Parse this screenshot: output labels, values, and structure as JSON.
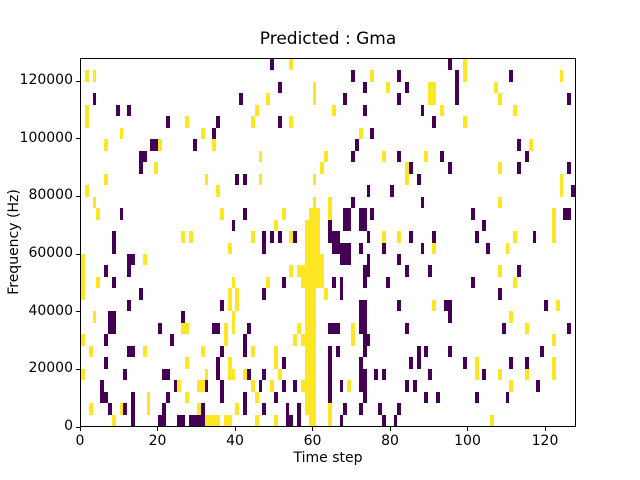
{
  "chart_data": {
    "type": "heatmap",
    "title": "Predicted : Gma",
    "xlabel": "Time step",
    "ylabel": "Frequency (Hz)",
    "x_range": [
      0,
      128
    ],
    "y_range": [
      0,
      128000
    ],
    "grid_cols": 128,
    "grid_rows": 32,
    "freq_bin_hz": 4000,
    "row_origin": "top",
    "xticks": [
      0,
      20,
      40,
      60,
      80,
      100,
      120
    ],
    "yticks": [
      0,
      20000,
      40000,
      60000,
      80000,
      100000,
      120000
    ],
    "legend": "none",
    "grid": "off",
    "colors": {
      "background_value": "#21918c",
      "high": "#fde725",
      "low": "#440154",
      "axes_text": "#000000",
      "figure_background": "#ffffff"
    },
    "yellow_cells": [
      [
        1,
        1
      ],
      [
        3,
        1
      ],
      [
        1,
        4
      ],
      [
        1,
        5
      ],
      [
        27,
        5
      ],
      [
        10,
        6
      ],
      [
        31,
        6
      ],
      [
        6,
        7
      ],
      [
        20,
        7
      ],
      [
        19,
        9
      ],
      [
        6,
        10
      ],
      [
        1,
        11
      ],
      [
        3,
        12
      ],
      [
        4,
        13
      ],
      [
        26,
        15
      ],
      [
        28,
        15
      ],
      [
        0,
        17
      ],
      [
        0,
        18
      ],
      [
        16,
        17
      ],
      [
        0,
        19
      ],
      [
        4,
        19
      ],
      [
        0,
        20
      ],
      [
        3,
        22
      ],
      [
        26,
        23
      ],
      [
        27,
        23
      ],
      [
        0,
        24
      ],
      [
        2,
        25
      ],
      [
        16,
        25
      ],
      [
        31,
        25
      ],
      [
        27,
        26
      ],
      [
        0,
        27
      ],
      [
        25,
        28
      ],
      [
        30,
        28
      ],
      [
        31,
        28
      ],
      [
        17,
        29
      ],
      [
        27,
        29
      ],
      [
        2,
        30
      ],
      [
        10,
        30
      ],
      [
        17,
        30
      ],
      [
        30,
        30
      ],
      [
        8,
        31
      ],
      [
        32,
        31
      ],
      [
        33,
        31
      ],
      [
        34,
        31
      ],
      [
        35,
        31
      ],
      [
        37,
        31
      ],
      [
        38,
        31
      ],
      [
        54,
        0
      ],
      [
        48,
        3
      ],
      [
        60,
        2
      ],
      [
        60,
        3
      ],
      [
        45,
        4
      ],
      [
        44,
        5
      ],
      [
        54,
        5
      ],
      [
        34,
        7
      ],
      [
        46,
        8
      ],
      [
        63,
        8
      ],
      [
        62,
        9
      ],
      [
        32,
        10
      ],
      [
        46,
        10
      ],
      [
        60,
        10
      ],
      [
        35,
        11
      ],
      [
        60,
        12
      ],
      [
        36,
        13
      ],
      [
        52,
        13
      ],
      [
        50,
        14
      ],
      [
        44,
        15
      ],
      [
        54,
        15
      ],
      [
        38,
        16
      ],
      [
        54,
        18
      ],
      [
        56,
        18
      ],
      [
        57,
        18
      ],
      [
        57,
        19
      ],
      [
        39,
        19
      ],
      [
        48,
        19
      ],
      [
        40,
        20
      ],
      [
        38,
        20
      ],
      [
        40,
        21
      ],
      [
        38,
        21
      ],
      [
        39,
        22
      ],
      [
        37,
        23
      ],
      [
        39,
        23
      ],
      [
        56,
        23
      ],
      [
        37,
        24
      ],
      [
        55,
        24
      ],
      [
        57,
        24
      ],
      [
        44,
        25
      ],
      [
        50,
        25
      ],
      [
        50,
        26
      ],
      [
        38,
        26
      ],
      [
        38,
        27
      ],
      [
        39,
        27
      ],
      [
        32,
        27
      ],
      [
        51,
        27
      ],
      [
        42,
        27
      ],
      [
        44,
        28
      ],
      [
        49,
        28
      ],
      [
        57,
        28
      ],
      [
        45,
        29
      ],
      [
        40,
        30
      ],
      [
        45,
        31
      ],
      [
        50,
        31
      ],
      [
        58,
        14
      ],
      [
        58,
        15
      ],
      [
        58,
        16
      ],
      [
        58,
        17
      ],
      [
        58,
        18
      ],
      [
        58,
        19
      ],
      [
        58,
        20
      ],
      [
        58,
        21
      ],
      [
        58,
        22
      ],
      [
        58,
        23
      ],
      [
        58,
        24
      ],
      [
        58,
        25
      ],
      [
        58,
        26
      ],
      [
        58,
        27
      ],
      [
        58,
        28
      ],
      [
        58,
        29
      ],
      [
        58,
        30
      ],
      [
        59,
        13
      ],
      [
        59,
        14
      ],
      [
        59,
        15
      ],
      [
        59,
        16
      ],
      [
        59,
        17
      ],
      [
        59,
        18
      ],
      [
        59,
        19
      ],
      [
        59,
        20
      ],
      [
        59,
        21
      ],
      [
        59,
        22
      ],
      [
        59,
        23
      ],
      [
        59,
        24
      ],
      [
        59,
        25
      ],
      [
        59,
        26
      ],
      [
        59,
        27
      ],
      [
        59,
        28
      ],
      [
        59,
        29
      ],
      [
        59,
        30
      ],
      [
        59,
        31
      ],
      [
        60,
        13
      ],
      [
        60,
        14
      ],
      [
        60,
        15
      ],
      [
        60,
        16
      ],
      [
        60,
        17
      ],
      [
        60,
        18
      ],
      [
        60,
        19
      ],
      [
        60,
        20
      ],
      [
        60,
        21
      ],
      [
        60,
        22
      ],
      [
        60,
        23
      ],
      [
        60,
        24
      ],
      [
        60,
        25
      ],
      [
        60,
        26
      ],
      [
        60,
        27
      ],
      [
        60,
        28
      ],
      [
        60,
        29
      ],
      [
        60,
        30
      ],
      [
        60,
        31
      ],
      [
        61,
        13
      ],
      [
        61,
        14
      ],
      [
        61,
        15
      ],
      [
        61,
        16
      ],
      [
        61,
        17
      ],
      [
        61,
        18
      ],
      [
        61,
        19
      ],
      [
        62,
        17
      ],
      [
        62,
        18
      ],
      [
        62,
        19
      ],
      [
        63,
        20
      ],
      [
        75,
        1
      ],
      [
        79,
        2
      ],
      [
        90,
        2
      ],
      [
        90,
        3
      ],
      [
        91,
        2
      ],
      [
        91,
        3
      ],
      [
        65,
        4
      ],
      [
        93,
        4
      ],
      [
        72,
        6
      ],
      [
        78,
        8
      ],
      [
        89,
        8
      ],
      [
        84,
        9
      ],
      [
        84,
        10
      ],
      [
        64,
        12
      ],
      [
        64,
        13
      ],
      [
        78,
        15
      ],
      [
        82,
        15
      ],
      [
        91,
        16
      ],
      [
        91,
        21
      ],
      [
        70,
        23
      ],
      [
        70,
        24
      ],
      [
        69,
        28
      ],
      [
        64,
        30
      ],
      [
        64,
        31
      ],
      [
        99,
        0
      ],
      [
        99,
        1
      ],
      [
        124,
        1
      ],
      [
        107,
        2
      ],
      [
        108,
        3
      ],
      [
        112,
        4
      ],
      [
        99,
        5
      ],
      [
        116,
        7
      ],
      [
        108,
        9
      ],
      [
        124,
        10
      ],
      [
        124,
        11
      ],
      [
        108,
        12
      ],
      [
        122,
        13
      ],
      [
        122,
        14
      ],
      [
        122,
        15
      ],
      [
        112,
        15
      ],
      [
        110,
        16
      ],
      [
        108,
        18
      ],
      [
        112,
        19
      ],
      [
        123,
        21
      ],
      [
        111,
        22
      ],
      [
        115,
        23
      ],
      [
        122,
        24
      ],
      [
        122,
        26
      ],
      [
        102,
        26
      ],
      [
        102,
        27
      ],
      [
        108,
        27
      ],
      [
        122,
        27
      ],
      [
        115,
        27
      ],
      [
        111,
        28
      ],
      [
        106,
        31
      ]
    ],
    "purple_cells": [
      [
        3,
        3
      ],
      [
        9,
        4
      ],
      [
        12,
        4
      ],
      [
        22,
        5
      ],
      [
        18,
        7
      ],
      [
        19,
        7
      ],
      [
        29,
        7
      ],
      [
        15,
        8
      ],
      [
        16,
        8
      ],
      [
        15,
        9
      ],
      [
        10,
        13
      ],
      [
        8,
        15
      ],
      [
        8,
        16
      ],
      [
        12,
        17
      ],
      [
        13,
        17
      ],
      [
        6,
        18
      ],
      [
        12,
        18
      ],
      [
        8,
        19
      ],
      [
        15,
        20
      ],
      [
        12,
        21
      ],
      [
        7,
        22
      ],
      [
        8,
        22
      ],
      [
        26,
        22
      ],
      [
        7,
        23
      ],
      [
        8,
        23
      ],
      [
        20,
        23
      ],
      [
        6,
        24
      ],
      [
        23,
        24
      ],
      [
        12,
        25
      ],
      [
        13,
        25
      ],
      [
        6,
        26
      ],
      [
        11,
        27
      ],
      [
        21,
        27
      ],
      [
        22,
        27
      ],
      [
        5,
        28
      ],
      [
        24,
        28
      ],
      [
        5,
        29
      ],
      [
        6,
        29
      ],
      [
        13,
        29
      ],
      [
        22,
        29
      ],
      [
        7,
        30
      ],
      [
        11,
        30
      ],
      [
        13,
        30
      ],
      [
        21,
        30
      ],
      [
        31,
        30
      ],
      [
        13,
        31
      ],
      [
        20,
        31
      ],
      [
        21,
        31
      ],
      [
        25,
        31
      ],
      [
        26,
        31
      ],
      [
        28,
        31
      ],
      [
        29,
        31
      ],
      [
        30,
        31
      ],
      [
        31,
        31
      ],
      [
        49,
        0
      ],
      [
        51,
        2
      ],
      [
        41,
        3
      ],
      [
        35,
        5
      ],
      [
        51,
        5
      ],
      [
        34,
        6
      ],
      [
        40,
        10
      ],
      [
        42,
        10
      ],
      [
        42,
        13
      ],
      [
        39,
        14
      ],
      [
        47,
        15
      ],
      [
        49,
        15
      ],
      [
        51,
        15
      ],
      [
        55,
        15
      ],
      [
        47,
        16
      ],
      [
        52,
        19
      ],
      [
        47,
        20
      ],
      [
        36,
        21
      ],
      [
        34,
        23
      ],
      [
        35,
        23
      ],
      [
        43,
        23
      ],
      [
        42,
        24
      ],
      [
        42,
        25
      ],
      [
        36,
        25
      ],
      [
        35,
        26
      ],
      [
        52,
        26
      ],
      [
        35,
        27
      ],
      [
        43,
        27
      ],
      [
        47,
        27
      ],
      [
        32,
        28
      ],
      [
        36,
        28
      ],
      [
        46,
        28
      ],
      [
        52,
        28
      ],
      [
        55,
        28
      ],
      [
        36,
        29
      ],
      [
        42,
        29
      ],
      [
        50,
        29
      ],
      [
        42,
        30
      ],
      [
        47,
        30
      ],
      [
        53,
        30
      ],
      [
        56,
        30
      ],
      [
        53,
        31
      ],
      [
        54,
        31
      ],
      [
        56,
        31
      ],
      [
        95,
        0
      ],
      [
        70,
        1
      ],
      [
        82,
        1
      ],
      [
        73,
        2
      ],
      [
        84,
        2
      ],
      [
        68,
        3
      ],
      [
        82,
        3
      ],
      [
        73,
        4
      ],
      [
        88,
        4
      ],
      [
        91,
        5
      ],
      [
        75,
        6
      ],
      [
        71,
        7
      ],
      [
        93,
        8
      ],
      [
        70,
        8
      ],
      [
        82,
        8
      ],
      [
        85,
        9
      ],
      [
        95,
        9
      ],
      [
        87,
        10
      ],
      [
        74,
        11
      ],
      [
        80,
        11
      ],
      [
        70,
        12
      ],
      [
        88,
        12
      ],
      [
        68,
        13
      ],
      [
        69,
        13
      ],
      [
        72,
        13
      ],
      [
        73,
        13
      ],
      [
        75,
        13
      ],
      [
        64,
        14
      ],
      [
        68,
        14
      ],
      [
        69,
        14
      ],
      [
        72,
        14
      ],
      [
        73,
        14
      ],
      [
        64,
        15
      ],
      [
        65,
        15
      ],
      [
        66,
        15
      ],
      [
        74,
        15
      ],
      [
        85,
        15
      ],
      [
        91,
        15
      ],
      [
        65,
        16
      ],
      [
        66,
        16
      ],
      [
        67,
        16
      ],
      [
        68,
        16
      ],
      [
        69,
        16
      ],
      [
        72,
        16
      ],
      [
        78,
        16
      ],
      [
        88,
        16
      ],
      [
        67,
        17
      ],
      [
        68,
        17
      ],
      [
        69,
        17
      ],
      [
        74,
        17
      ],
      [
        82,
        17
      ],
      [
        73,
        18
      ],
      [
        74,
        18
      ],
      [
        84,
        18
      ],
      [
        90,
        18
      ],
      [
        65,
        19
      ],
      [
        67,
        19
      ],
      [
        73,
        19
      ],
      [
        79,
        19
      ],
      [
        67,
        20
      ],
      [
        72,
        21
      ],
      [
        73,
        21
      ],
      [
        82,
        21
      ],
      [
        94,
        21
      ],
      [
        95,
        21
      ],
      [
        72,
        22
      ],
      [
        73,
        22
      ],
      [
        95,
        22
      ],
      [
        64,
        23
      ],
      [
        65,
        23
      ],
      [
        66,
        23
      ],
      [
        72,
        23
      ],
      [
        73,
        23
      ],
      [
        84,
        23
      ],
      [
        73,
        24
      ],
      [
        74,
        24
      ],
      [
        64,
        25
      ],
      [
        66,
        25
      ],
      [
        73,
        25
      ],
      [
        87,
        25
      ],
      [
        89,
        25
      ],
      [
        95,
        25
      ],
      [
        64,
        26
      ],
      [
        72,
        26
      ],
      [
        85,
        26
      ],
      [
        87,
        26
      ],
      [
        64,
        27
      ],
      [
        72,
        27
      ],
      [
        73,
        27
      ],
      [
        76,
        27
      ],
      [
        78,
        27
      ],
      [
        90,
        27
      ],
      [
        64,
        28
      ],
      [
        67,
        28
      ],
      [
        72,
        28
      ],
      [
        73,
        28
      ],
      [
        84,
        28
      ],
      [
        86,
        28
      ],
      [
        64,
        29
      ],
      [
        73,
        29
      ],
      [
        89,
        29
      ],
      [
        92,
        29
      ],
      [
        68,
        30
      ],
      [
        72,
        30
      ],
      [
        77,
        30
      ],
      [
        82,
        30
      ],
      [
        67,
        31
      ],
      [
        78,
        31
      ],
      [
        81,
        31
      ],
      [
        97,
        1
      ],
      [
        111,
        1
      ],
      [
        97,
        2
      ],
      [
        97,
        3
      ],
      [
        126,
        3
      ],
      [
        113,
        7
      ],
      [
        115,
        8
      ],
      [
        113,
        9
      ],
      [
        126,
        9
      ],
      [
        127,
        11
      ],
      [
        101,
        13
      ],
      [
        125,
        13
      ],
      [
        126,
        13
      ],
      [
        104,
        14
      ],
      [
        102,
        15
      ],
      [
        117,
        15
      ],
      [
        105,
        16
      ],
      [
        113,
        18
      ],
      [
        101,
        19
      ],
      [
        108,
        20
      ],
      [
        120,
        21
      ],
      [
        109,
        23
      ],
      [
        126,
        23
      ],
      [
        119,
        25
      ],
      [
        99,
        26
      ],
      [
        111,
        26
      ],
      [
        115,
        26
      ],
      [
        104,
        27
      ],
      [
        118,
        28
      ],
      [
        110,
        29
      ],
      [
        102,
        29
      ]
    ]
  }
}
